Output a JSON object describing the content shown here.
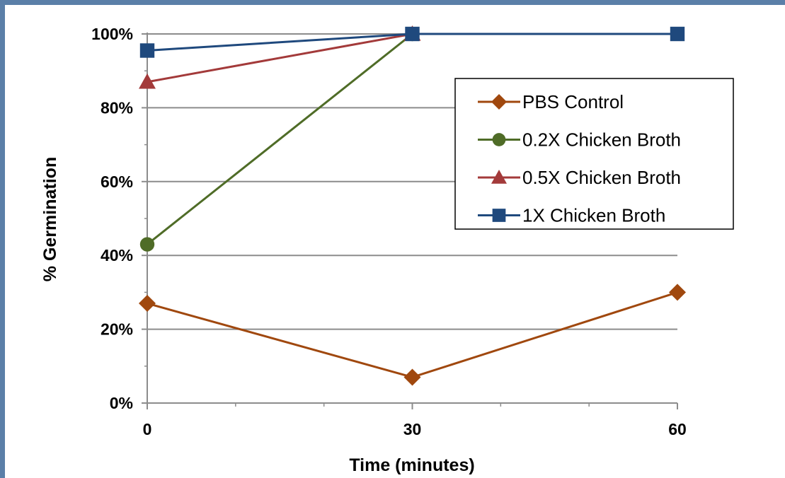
{
  "chart_data": {
    "type": "line",
    "xlabel": "Time (minutes)",
    "ylabel": "% Germination",
    "x": [
      0,
      30,
      60
    ],
    "x_ticks": [
      "0",
      "30",
      "60"
    ],
    "xlim": [
      0,
      60
    ],
    "ylim": [
      0,
      100
    ],
    "y_ticks": [
      "0%",
      "20%",
      "40%",
      "60%",
      "80%",
      "100%"
    ],
    "grid": "horizontal",
    "legend_position": "top-right",
    "series": [
      {
        "name": "PBS Control",
        "color": "#a0480e",
        "marker": "diamond",
        "x": [
          0,
          30,
          60
        ],
        "values": [
          27,
          7,
          30
        ]
      },
      {
        "name": "0.2X Chicken Broth",
        "color": "#4f6c27",
        "marker": "circle",
        "x": [
          0,
          30
        ],
        "values": [
          43,
          100
        ]
      },
      {
        "name": "0.5X Chicken Broth",
        "color": "#a33a3a",
        "marker": "triangle",
        "x": [
          0,
          30
        ],
        "values": [
          87,
          100
        ]
      },
      {
        "name": "1X Chicken Broth",
        "color": "#1f497d",
        "marker": "square",
        "x": [
          0,
          30,
          60
        ],
        "values": [
          95.5,
          100,
          100
        ]
      }
    ]
  }
}
